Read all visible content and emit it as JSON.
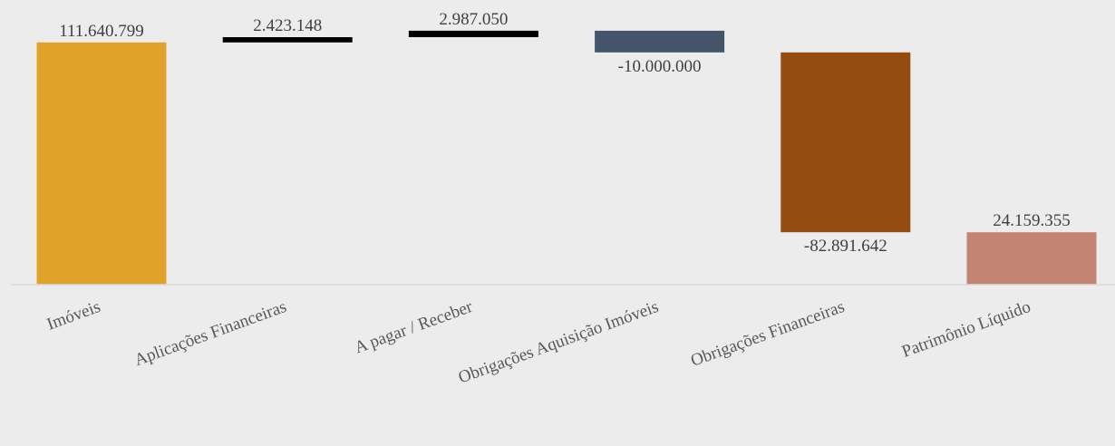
{
  "chart_data": {
    "type": "waterfall",
    "categories": [
      "Imóveis",
      "Aplicações Financeiras",
      "A pagar / Receber",
      "Obrigações Aquisição Imóveis",
      "Obrigações Financeiras",
      "Patrimônio Líquido"
    ],
    "values": [
      111640799,
      2423148,
      2987050,
      -10000000,
      -82891642,
      24159355
    ],
    "value_labels": [
      "111.640.799",
      "2.423.148",
      "2.987.050",
      "-10.000.000",
      "-82.891.642",
      "24.159.355"
    ],
    "bar_kinds": [
      "total",
      "delta",
      "delta",
      "delta",
      "delta",
      "total"
    ],
    "colors": [
      "#e0a329",
      "#000000",
      "#000000",
      "#44546a",
      "#944d0f",
      "#c48473"
    ],
    "background": "#ececec",
    "ylim": [
      0,
      119500000
    ],
    "legend": "none",
    "grid": false
  }
}
